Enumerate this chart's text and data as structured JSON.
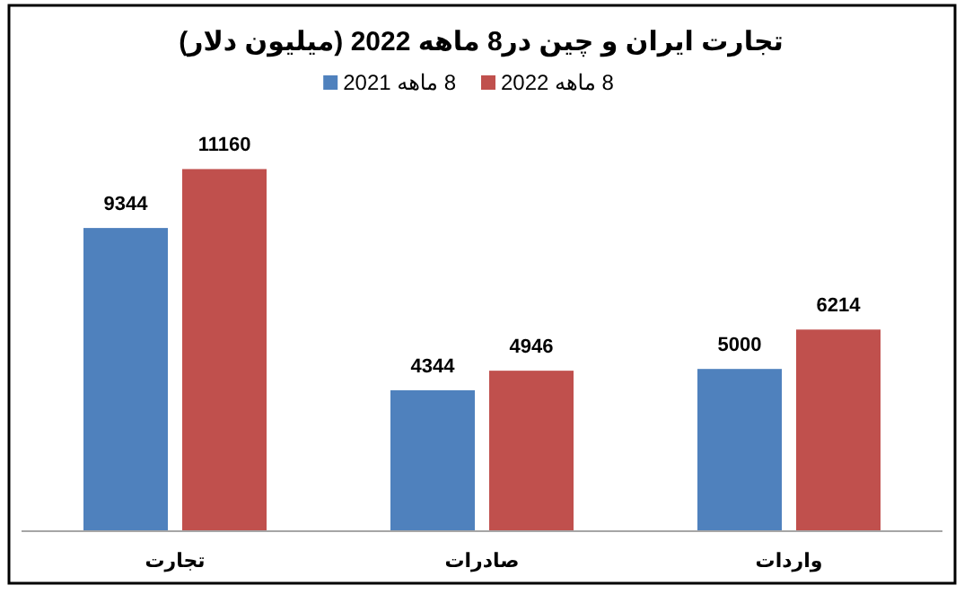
{
  "chart_data": {
    "type": "bar",
    "title": "تجارت ایران و چین در8 ماهه 2022 (میلیون دلار)",
    "categories": [
      "تجارت",
      "صادرات",
      "واردات"
    ],
    "series": [
      {
        "name": "8 ماهه 2021",
        "color": "#4f81bd",
        "values": [
          9344,
          4344,
          5000
        ]
      },
      {
        "name": "8 ماهه 2022",
        "color": "#c0504d",
        "values": [
          11160,
          4946,
          6214
        ]
      }
    ],
    "data_labels": true,
    "legend": "top",
    "grid": false
  }
}
